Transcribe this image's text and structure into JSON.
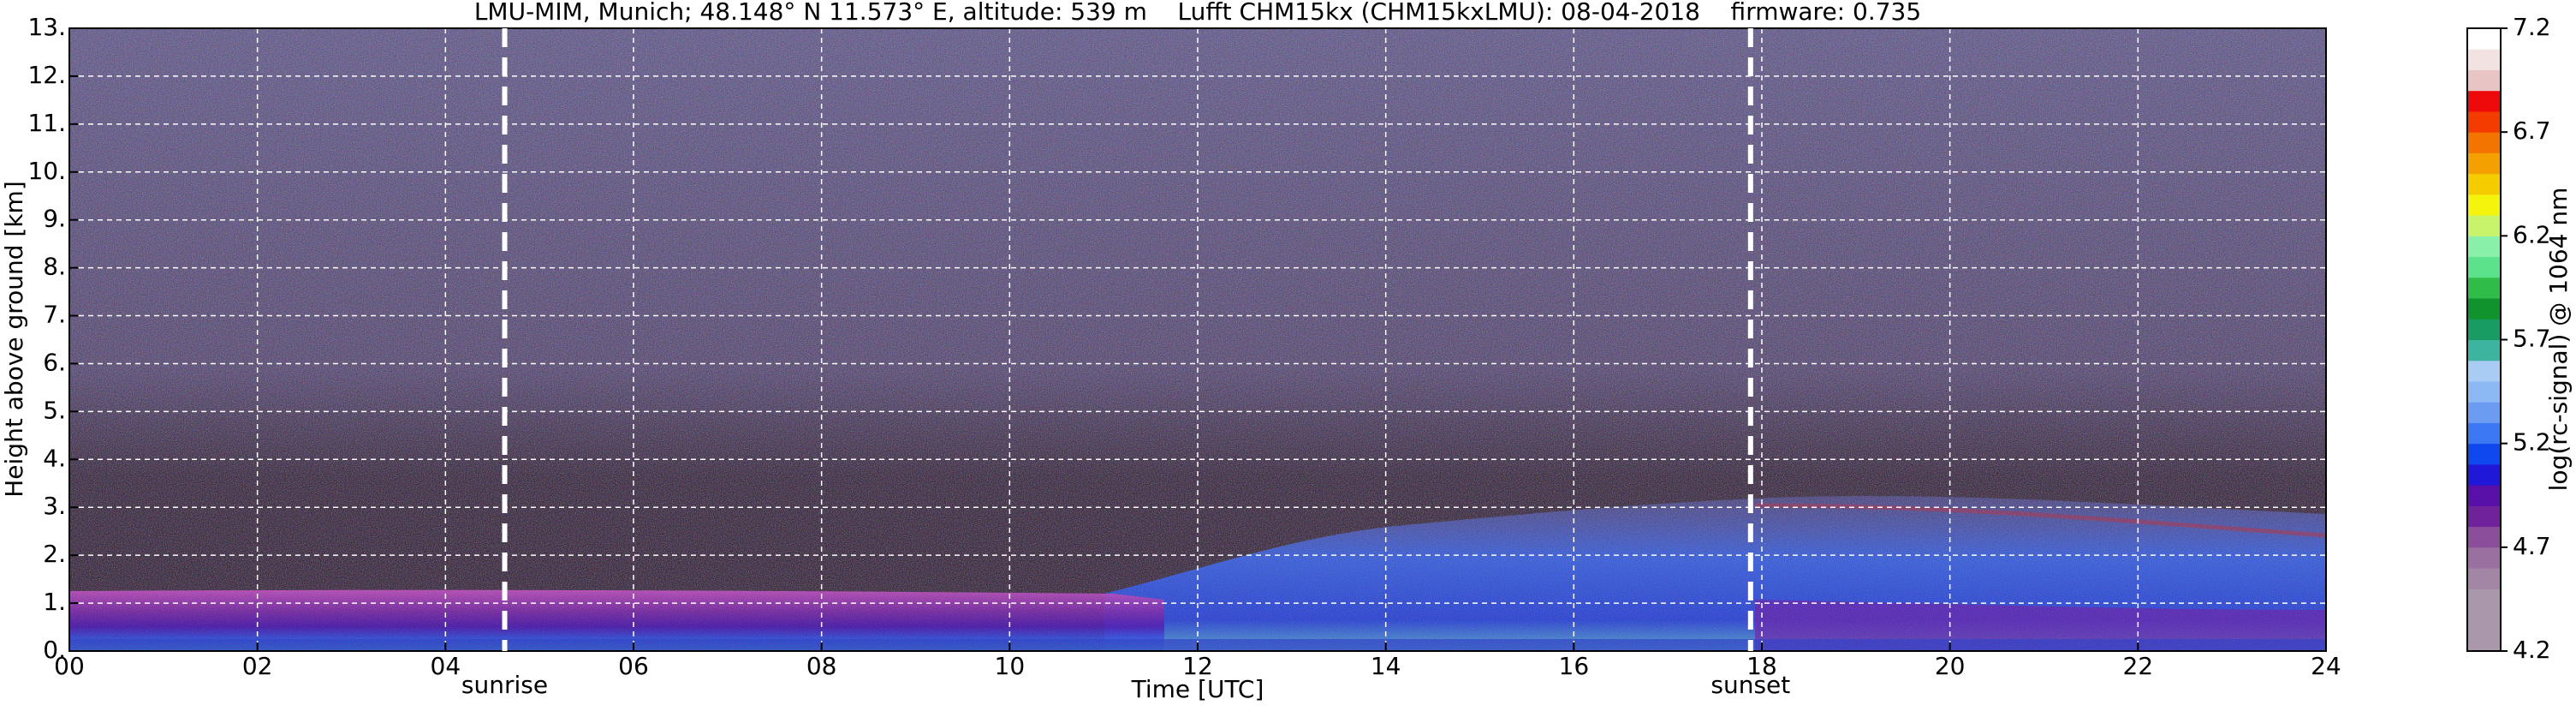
{
  "chart_data": {
    "type": "heatmap",
    "title": "LMU-MIM, Munich; 48.148° N 11.573° E, altitude: 539 m    Lufft CHM15kx (CHM15kxLMU): 08-04-2018    firmware: 0.735",
    "xlabel": "Time [UTC]",
    "ylabel": "Height above ground [km]",
    "xlim": [
      0,
      24
    ],
    "xticks": [
      {
        "value": 0,
        "label": "00"
      },
      {
        "value": 2,
        "label": "02"
      },
      {
        "value": 4,
        "label": "04"
      },
      {
        "value": 6,
        "label": "06"
      },
      {
        "value": 8,
        "label": "08"
      },
      10,
      12,
      14,
      16,
      18,
      20,
      22,
      24
    ],
    "ylim": [
      0,
      13
    ],
    "yticks": [
      {
        "value": 0,
        "label": "0."
      },
      {
        "value": 1,
        "label": "1."
      },
      {
        "value": 2,
        "label": "2."
      },
      {
        "value": 3,
        "label": "3."
      },
      {
        "value": 4,
        "label": "4."
      },
      {
        "value": 5,
        "label": "5."
      },
      {
        "value": 6,
        "label": "6."
      },
      {
        "value": 7,
        "label": "7."
      },
      {
        "value": 8,
        "label": "8."
      },
      {
        "value": 9,
        "label": "9."
      },
      {
        "value": 10,
        "label": "10."
      },
      {
        "value": 11,
        "label": "11."
      },
      {
        "value": 12,
        "label": "12."
      },
      {
        "value": 13,
        "label": "13."
      }
    ],
    "grid": true,
    "grid_color": "#ffffff",
    "annotations": [
      {
        "text": "sunrise",
        "x": 4.63
      },
      {
        "text": "sunset",
        "x": 17.88
      }
    ],
    "colorbar": {
      "label": "log(rc-signal) @ 1064 nm",
      "clim": [
        4.2,
        7.2
      ],
      "ticks": [
        4.2,
        4.7,
        5.2,
        5.7,
        6.2,
        6.7,
        7.2
      ],
      "colormap": [
        "#ab97ac",
        "#ab97ac",
        "#ab97ac",
        "#a385a6",
        "#9a70a0",
        "#8a4e9a",
        "#70229a",
        "#5810a8",
        "#2018d8",
        "#1048f0",
        "#3c78f4",
        "#6c9cf2",
        "#8cb8f4",
        "#a8ccf4",
        "#3cb4a0",
        "#189c64",
        "#10922c",
        "#30bc48",
        "#5ce28a",
        "#88f0a8",
        "#c8f46c",
        "#f4f40c",
        "#f4cc00",
        "#f4a000",
        "#f47400",
        "#f43c00",
        "#ee0a0a",
        "#e8c4c4",
        "#f2e2e2",
        "#ffffff"
      ]
    }
  }
}
